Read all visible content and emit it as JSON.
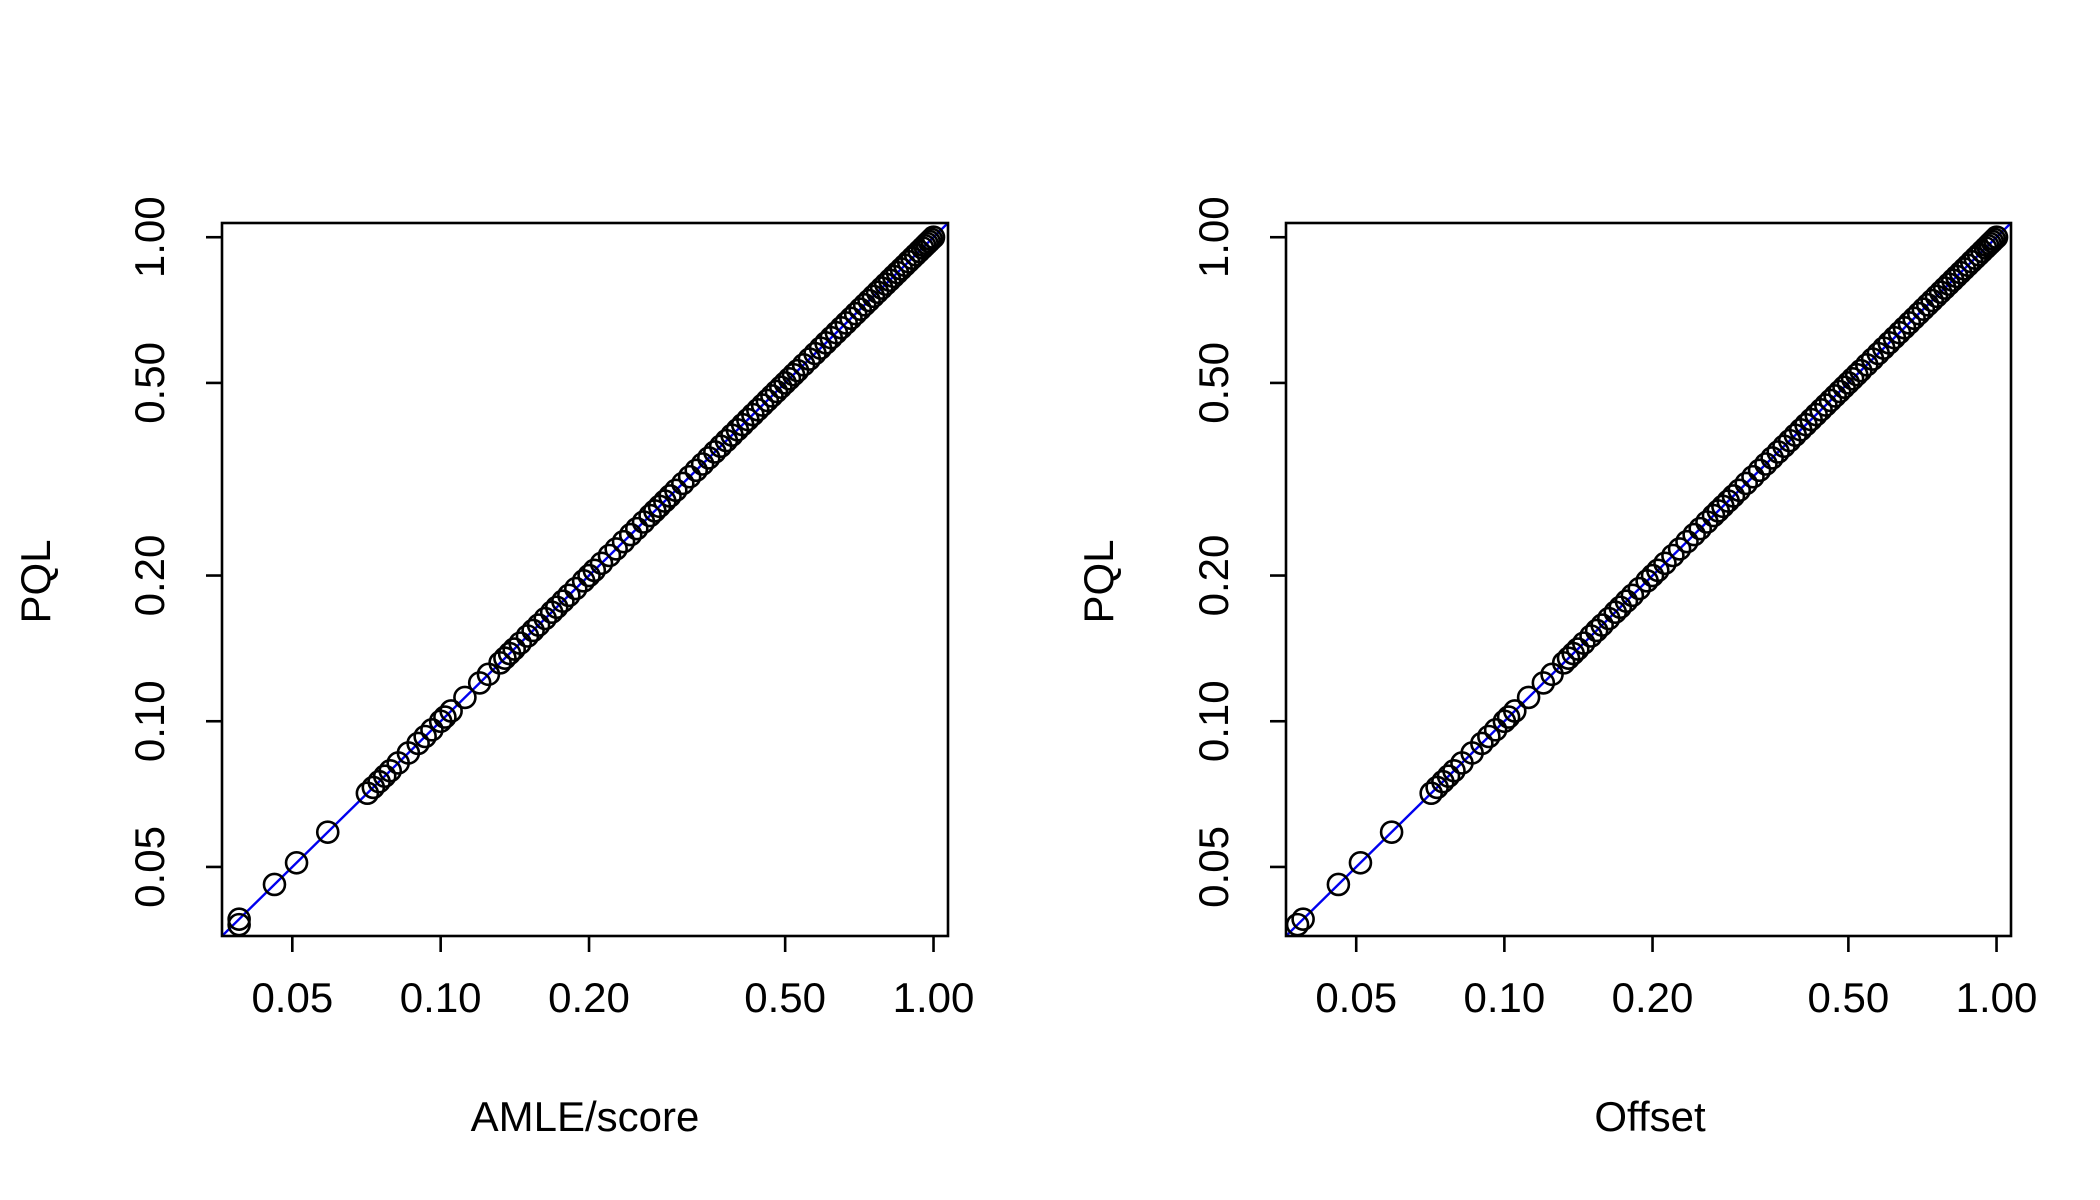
{
  "chart_data": [
    {
      "type": "scatter",
      "xlabel": "AMLE/score",
      "ylabel": "PQL",
      "x_scale": "log",
      "y_scale": "log",
      "xlim": [
        0.036,
        1.07
      ],
      "ylim": [
        0.036,
        1.07
      ],
      "xticks": [
        0.05,
        0.1,
        0.2,
        0.5,
        1.0
      ],
      "xtick_labels": [
        "0.05",
        "0.10",
        "0.20",
        "0.50",
        "1.00"
      ],
      "yticks": [
        0.05,
        0.1,
        0.2,
        0.5,
        1.0
      ],
      "ytick_labels": [
        "0.05",
        "0.10",
        "0.20",
        "0.50",
        "1.00"
      ],
      "reference_line": {
        "type": "identity",
        "color": "#0000ee"
      },
      "grid": false,
      "x": [
        0.039,
        0.039,
        0.046,
        0.051,
        0.059,
        0.071,
        0.073,
        0.075,
        0.077,
        0.079,
        0.082,
        0.086,
        0.09,
        0.093,
        0.096,
        0.1,
        0.102,
        0.105,
        0.112,
        0.12,
        0.125,
        0.132,
        0.135,
        0.138,
        0.141,
        0.145,
        0.15,
        0.154,
        0.158,
        0.163,
        0.168,
        0.172,
        0.177,
        0.182,
        0.188,
        0.195,
        0.2,
        0.205,
        0.212,
        0.22,
        0.227,
        0.235,
        0.243,
        0.25,
        0.258,
        0.266,
        0.272,
        0.278,
        0.285,
        0.292,
        0.3,
        0.31,
        0.32,
        0.33,
        0.34,
        0.35,
        0.36,
        0.37,
        0.38,
        0.39,
        0.4,
        0.41,
        0.42,
        0.43,
        0.44,
        0.45,
        0.46,
        0.47,
        0.48,
        0.49,
        0.5,
        0.51,
        0.52,
        0.53,
        0.545,
        0.56,
        0.575,
        0.59,
        0.605,
        0.62,
        0.635,
        0.65,
        0.665,
        0.68,
        0.695,
        0.71,
        0.725,
        0.74,
        0.755,
        0.77,
        0.785,
        0.8,
        0.815,
        0.83,
        0.845,
        0.86,
        0.875,
        0.89,
        0.905,
        0.92,
        0.935,
        0.95,
        0.96,
        0.97,
        0.98,
        0.99,
        1.0
      ],
      "y": [
        0.038,
        0.039,
        0.046,
        0.051,
        0.059,
        0.071,
        0.073,
        0.075,
        0.077,
        0.079,
        0.082,
        0.086,
        0.09,
        0.093,
        0.096,
        0.1,
        0.102,
        0.105,
        0.112,
        0.12,
        0.125,
        0.132,
        0.135,
        0.138,
        0.141,
        0.145,
        0.15,
        0.154,
        0.158,
        0.163,
        0.168,
        0.172,
        0.177,
        0.182,
        0.188,
        0.195,
        0.2,
        0.205,
        0.212,
        0.22,
        0.227,
        0.235,
        0.243,
        0.25,
        0.258,
        0.266,
        0.272,
        0.278,
        0.285,
        0.292,
        0.3,
        0.31,
        0.32,
        0.33,
        0.34,
        0.35,
        0.36,
        0.37,
        0.38,
        0.39,
        0.4,
        0.41,
        0.42,
        0.43,
        0.44,
        0.45,
        0.46,
        0.47,
        0.48,
        0.49,
        0.5,
        0.51,
        0.52,
        0.53,
        0.545,
        0.56,
        0.575,
        0.59,
        0.605,
        0.62,
        0.635,
        0.65,
        0.665,
        0.68,
        0.695,
        0.71,
        0.725,
        0.74,
        0.755,
        0.77,
        0.785,
        0.8,
        0.815,
        0.83,
        0.845,
        0.86,
        0.875,
        0.89,
        0.905,
        0.92,
        0.935,
        0.95,
        0.96,
        0.97,
        0.98,
        0.99,
        1.0
      ]
    },
    {
      "type": "scatter",
      "xlabel": "Offset",
      "ylabel": "PQL",
      "x_scale": "log",
      "y_scale": "log",
      "xlim": [
        0.036,
        1.07
      ],
      "ylim": [
        0.036,
        1.07
      ],
      "xticks": [
        0.05,
        0.1,
        0.2,
        0.5,
        1.0
      ],
      "xtick_labels": [
        "0.05",
        "0.10",
        "0.20",
        "0.50",
        "1.00"
      ],
      "yticks": [
        0.05,
        0.1,
        0.2,
        0.5,
        1.0
      ],
      "ytick_labels": [
        "0.05",
        "0.10",
        "0.20",
        "0.50",
        "1.00"
      ],
      "reference_line": {
        "type": "identity",
        "color": "#0000ee"
      },
      "grid": false,
      "x": [
        0.038,
        0.039,
        0.046,
        0.051,
        0.059,
        0.071,
        0.073,
        0.075,
        0.077,
        0.079,
        0.082,
        0.086,
        0.09,
        0.093,
        0.096,
        0.1,
        0.102,
        0.105,
        0.112,
        0.12,
        0.125,
        0.132,
        0.135,
        0.138,
        0.141,
        0.145,
        0.15,
        0.154,
        0.158,
        0.163,
        0.168,
        0.172,
        0.177,
        0.182,
        0.188,
        0.195,
        0.2,
        0.205,
        0.212,
        0.22,
        0.227,
        0.235,
        0.243,
        0.25,
        0.258,
        0.266,
        0.272,
        0.278,
        0.285,
        0.292,
        0.3,
        0.31,
        0.32,
        0.33,
        0.34,
        0.35,
        0.36,
        0.37,
        0.38,
        0.39,
        0.4,
        0.41,
        0.42,
        0.43,
        0.44,
        0.45,
        0.46,
        0.47,
        0.48,
        0.49,
        0.5,
        0.51,
        0.52,
        0.53,
        0.545,
        0.56,
        0.575,
        0.59,
        0.605,
        0.62,
        0.635,
        0.65,
        0.665,
        0.68,
        0.695,
        0.71,
        0.725,
        0.74,
        0.755,
        0.77,
        0.785,
        0.8,
        0.815,
        0.83,
        0.845,
        0.86,
        0.875,
        0.89,
        0.905,
        0.92,
        0.935,
        0.95,
        0.96,
        0.97,
        0.98,
        0.99,
        1.0
      ],
      "y": [
        0.038,
        0.039,
        0.046,
        0.051,
        0.059,
        0.071,
        0.073,
        0.075,
        0.077,
        0.079,
        0.082,
        0.086,
        0.09,
        0.093,
        0.096,
        0.1,
        0.102,
        0.105,
        0.112,
        0.12,
        0.125,
        0.132,
        0.135,
        0.138,
        0.141,
        0.145,
        0.15,
        0.154,
        0.158,
        0.163,
        0.168,
        0.172,
        0.177,
        0.182,
        0.188,
        0.195,
        0.2,
        0.205,
        0.212,
        0.22,
        0.227,
        0.235,
        0.243,
        0.25,
        0.258,
        0.266,
        0.272,
        0.278,
        0.285,
        0.292,
        0.3,
        0.31,
        0.32,
        0.33,
        0.34,
        0.35,
        0.36,
        0.37,
        0.38,
        0.39,
        0.4,
        0.41,
        0.42,
        0.43,
        0.44,
        0.45,
        0.46,
        0.47,
        0.48,
        0.49,
        0.5,
        0.51,
        0.52,
        0.53,
        0.545,
        0.56,
        0.575,
        0.59,
        0.605,
        0.62,
        0.635,
        0.65,
        0.665,
        0.68,
        0.695,
        0.71,
        0.725,
        0.74,
        0.755,
        0.77,
        0.785,
        0.8,
        0.815,
        0.83,
        0.845,
        0.86,
        0.875,
        0.89,
        0.905,
        0.92,
        0.935,
        0.95,
        0.96,
        0.97,
        0.98,
        0.99,
        1.0
      ]
    }
  ]
}
